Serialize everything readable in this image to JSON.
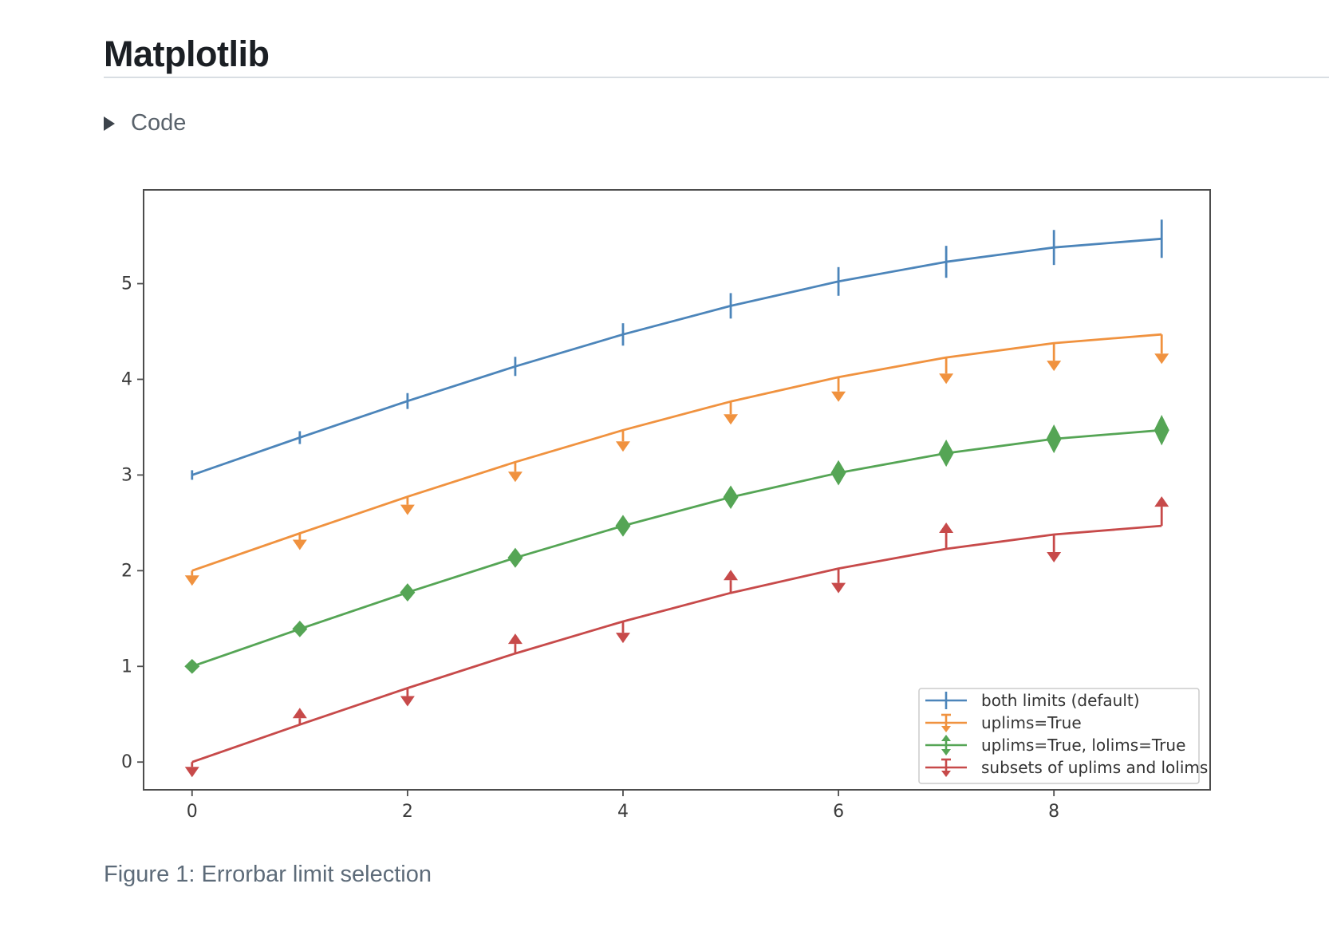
{
  "page": {
    "title": "Matplotlib",
    "code_toggle": {
      "label": "Code",
      "icon": "triangle-right-icon"
    },
    "caption": "Figure 1: Errorbar limit selection"
  },
  "chart_data": {
    "type": "line",
    "title": "",
    "xlabel": "",
    "ylabel": "",
    "grid": false,
    "legend_position": "lower right",
    "x": [
      0,
      1,
      2,
      3,
      4,
      5,
      6,
      7,
      8,
      9
    ],
    "xticks": [
      0,
      2,
      4,
      6,
      8
    ],
    "yticks": [
      0,
      1,
      2,
      3,
      4,
      5
    ],
    "xlim": [
      -0.45,
      9.45
    ],
    "ylim": [
      -0.29,
      5.98
    ],
    "yerr": [
      0.05,
      0.067,
      0.083,
      0.1,
      0.117,
      0.133,
      0.15,
      0.167,
      0.183,
      0.2
    ],
    "frame_color": "#4d4d4d",
    "legend_border_color": "#cbcbcb",
    "series": [
      {
        "name": "both limits (default)",
        "color": "#4c85ba",
        "values": [
          3.0,
          3.391,
          3.773,
          4.135,
          4.469,
          4.768,
          5.023,
          5.228,
          5.378,
          5.469
        ],
        "uplims": [
          false,
          false,
          false,
          false,
          false,
          false,
          false,
          false,
          false,
          false
        ],
        "lolims": [
          false,
          false,
          false,
          false,
          false,
          false,
          false,
          false,
          false,
          false
        ]
      },
      {
        "name": "uplims=True",
        "color": "#f0923f",
        "values": [
          2.0,
          2.391,
          2.773,
          3.135,
          3.469,
          3.768,
          4.023,
          4.228,
          4.378,
          4.469
        ],
        "uplims": [
          true,
          true,
          true,
          true,
          true,
          true,
          true,
          true,
          true,
          true
        ],
        "lolims": [
          false,
          false,
          false,
          false,
          false,
          false,
          false,
          false,
          false,
          false
        ]
      },
      {
        "name": "uplims=True, lolims=True",
        "color": "#55a555",
        "values": [
          1.0,
          1.391,
          1.773,
          2.135,
          2.469,
          2.768,
          3.023,
          3.228,
          3.378,
          3.469
        ],
        "uplims": [
          true,
          true,
          true,
          true,
          true,
          true,
          true,
          true,
          true,
          true
        ],
        "lolims": [
          true,
          true,
          true,
          true,
          true,
          true,
          true,
          true,
          true,
          true
        ]
      },
      {
        "name": "subsets of uplims and lolims",
        "color": "#c74a4a",
        "values": [
          0.0,
          0.391,
          0.773,
          1.135,
          1.469,
          1.768,
          2.023,
          2.228,
          2.378,
          2.469
        ],
        "uplims": [
          true,
          false,
          true,
          false,
          true,
          false,
          true,
          false,
          true,
          false
        ],
        "lolims": [
          false,
          true,
          false,
          true,
          false,
          true,
          false,
          true,
          false,
          true
        ]
      }
    ]
  }
}
